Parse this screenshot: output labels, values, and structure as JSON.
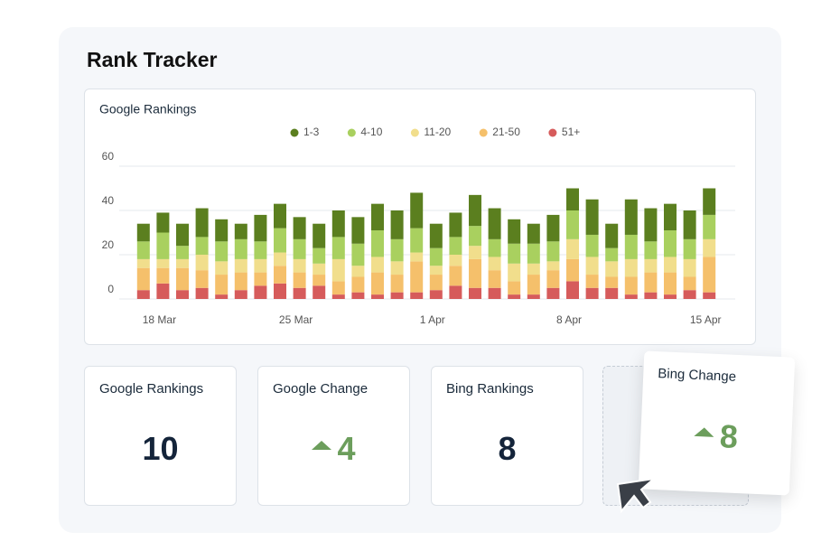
{
  "header": {
    "title": "Rank Tracker"
  },
  "chart_data": {
    "type": "stacked-bar",
    "title": "Google Rankings",
    "categories": [
      null,
      "18 Mar",
      null,
      null,
      null,
      null,
      null,
      null,
      "25 Mar",
      null,
      null,
      null,
      null,
      null,
      null,
      "1 Apr",
      null,
      null,
      null,
      null,
      null,
      null,
      "8 Apr",
      null,
      null,
      null,
      null,
      null,
      null,
      "15 Apr"
    ],
    "series": [
      {
        "name": "1-3",
        "color": "#5b7f1f",
        "values": [
          8,
          9,
          10,
          13,
          10,
          7,
          12,
          11,
          10,
          11,
          12,
          12,
          12,
          13,
          16,
          11,
          11,
          14,
          14,
          11,
          9,
          12,
          10,
          16,
          11,
          16,
          15,
          12,
          13,
          12
        ]
      },
      {
        "name": "4-10",
        "color": "#a9d05f",
        "values": [
          8,
          12,
          6,
          8,
          9,
          9,
          8,
          11,
          9,
          7,
          10,
          10,
          12,
          10,
          11,
          8,
          8,
          9,
          8,
          9,
          9,
          9,
          13,
          10,
          6,
          11,
          8,
          12,
          9,
          11
        ]
      },
      {
        "name": "11-20",
        "color": "#f1de8c",
        "values": [
          4,
          4,
          4,
          7,
          6,
          6,
          6,
          6,
          6,
          5,
          10,
          5,
          7,
          6,
          4,
          4,
          5,
          6,
          6,
          8,
          5,
          4,
          9,
          8,
          7,
          8,
          6,
          7,
          8,
          8
        ]
      },
      {
        "name": "21-50",
        "color": "#f5c06b",
        "values": [
          10,
          7,
          10,
          8,
          9,
          8,
          6,
          8,
          7,
          5,
          6,
          7,
          10,
          8,
          14,
          7,
          9,
          13,
          8,
          6,
          9,
          8,
          10,
          6,
          5,
          8,
          9,
          10,
          6,
          16
        ]
      },
      {
        "name": "51+",
        "color": "#d65b5b",
        "values": [
          4,
          7,
          4,
          5,
          2,
          4,
          6,
          7,
          5,
          6,
          2,
          3,
          2,
          3,
          3,
          4,
          6,
          5,
          5,
          2,
          2,
          5,
          8,
          5,
          5,
          2,
          3,
          2,
          4,
          3
        ]
      }
    ],
    "ylim": [
      0,
      60
    ],
    "yticks": [
      0,
      20,
      40,
      60
    ],
    "grid": true,
    "legend": "top"
  },
  "cards": [
    {
      "title": "Google Rankings",
      "value": "10"
    },
    {
      "title": "Google Change",
      "value": "4"
    },
    {
      "title": "Bing Rankings",
      "value": "8"
    },
    {
      "title": "Bing Change",
      "value": "8"
    }
  ]
}
